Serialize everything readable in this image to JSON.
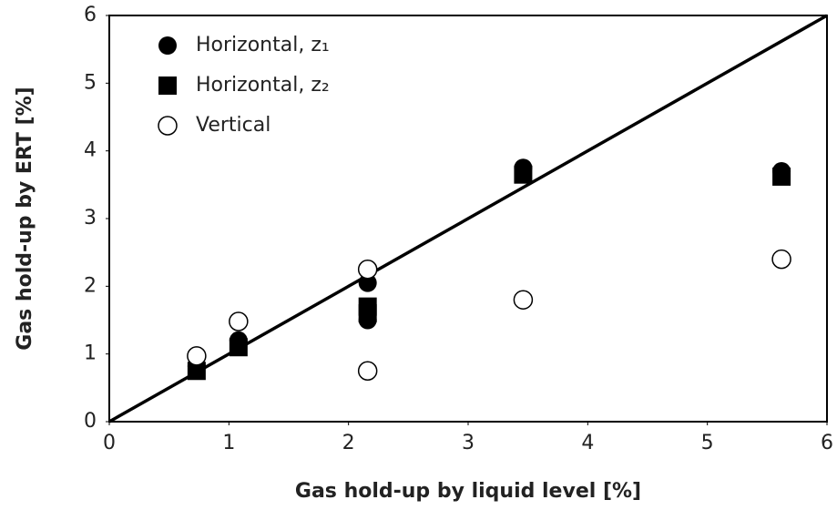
{
  "chart_data": {
    "type": "scatter",
    "x_label": "Gas hold-up by liquid level [%]",
    "y_label": "Gas hold-up by ERT [%]",
    "xlim": [
      0,
      6
    ],
    "ylim": [
      0,
      6
    ],
    "xticks": [
      0,
      1,
      2,
      3,
      4,
      5,
      6
    ],
    "yticks": [
      0,
      1,
      2,
      3,
      4,
      5,
      6
    ],
    "grid": false,
    "legend": "upper left",
    "series": [
      {
        "name": "Horizontal, z₁",
        "color": "#000000",
        "marker": "filled-circle",
        "x": [
          0.73,
          1.08,
          2.16,
          2.16,
          3.46,
          5.62
        ],
        "values": [
          0.82,
          1.2,
          1.5,
          2.05,
          3.75,
          3.7
        ]
      },
      {
        "name": "Horizontal, z₂",
        "color": "#000000",
        "marker": "filled-square",
        "x": [
          0.73,
          1.08,
          2.16,
          2.16,
          3.46,
          5.62
        ],
        "values": [
          0.75,
          1.1,
          1.6,
          1.7,
          3.65,
          3.62
        ]
      },
      {
        "name": "Vertical",
        "color": "#000000",
        "marker": "open-circle",
        "x": [
          0.73,
          1.08,
          2.16,
          2.16,
          3.46,
          5.62
        ],
        "values": [
          0.97,
          1.48,
          2.25,
          0.75,
          1.8,
          2.4
        ]
      }
    ]
  }
}
